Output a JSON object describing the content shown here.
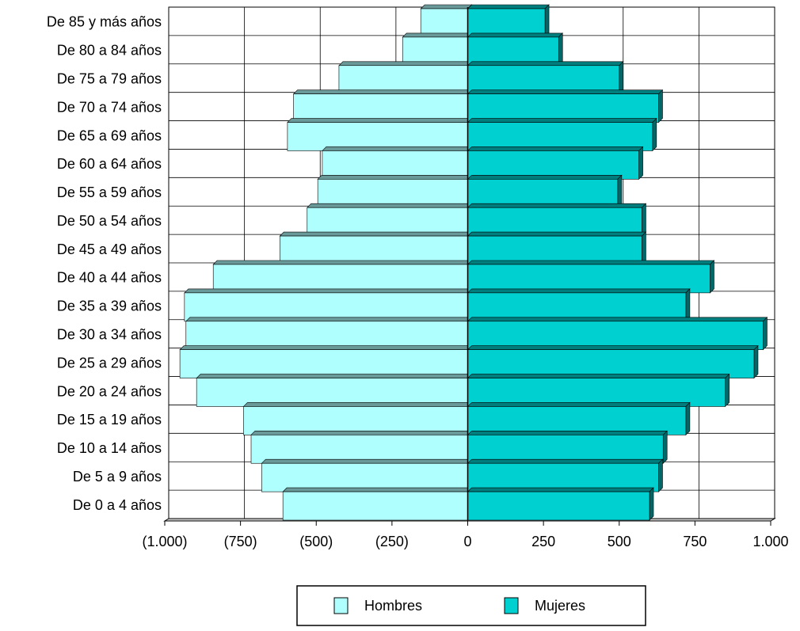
{
  "chart_data": {
    "type": "bar",
    "orientation": "horizontal",
    "stacked": "diverging",
    "categories": [
      "De 85 y más años",
      "De 80 a 84 años",
      "De 75 a 79 años",
      "De 70 a 74 años",
      "De 65 a 69 años",
      "De 60 a 64 años",
      "De 55 a 59 años",
      "De 50 a 54 años",
      "De 45 a 49 años",
      "De 40 a 44 años",
      "De 35 a 39 años",
      "De 30 a 34 años",
      "De 25 a 29 años",
      "De 20 a 24 años",
      "De 15 a 19 años",
      "De 10 a 14 años",
      "De 5 a 9 años",
      "De 0 a 4 años"
    ],
    "series": [
      {
        "name": "Hombres",
        "color": "#b0ffff",
        "values": [
          -155,
          -215,
          -425,
          -575,
          -595,
          -480,
          -495,
          -530,
          -620,
          -840,
          -935,
          -930,
          -950,
          -895,
          -740,
          -715,
          -680,
          -610
        ]
      },
      {
        "name": "Mujeres",
        "color": "#00d0d0",
        "values": [
          255,
          300,
          500,
          630,
          610,
          565,
          495,
          575,
          575,
          800,
          720,
          975,
          945,
          850,
          720,
          645,
          630,
          600
        ]
      }
    ],
    "xlim": [
      -1000,
      1000
    ],
    "xticks": [
      {
        "value": -1000,
        "label": "(1.000)"
      },
      {
        "value": -750,
        "label": "(750)"
      },
      {
        "value": -500,
        "label": "(500)"
      },
      {
        "value": -250,
        "label": "(250)"
      },
      0,
      250,
      500,
      750,
      {
        "value": 1000,
        "label": "1.000"
      }
    ],
    "grid": true,
    "legend": "bottom"
  }
}
